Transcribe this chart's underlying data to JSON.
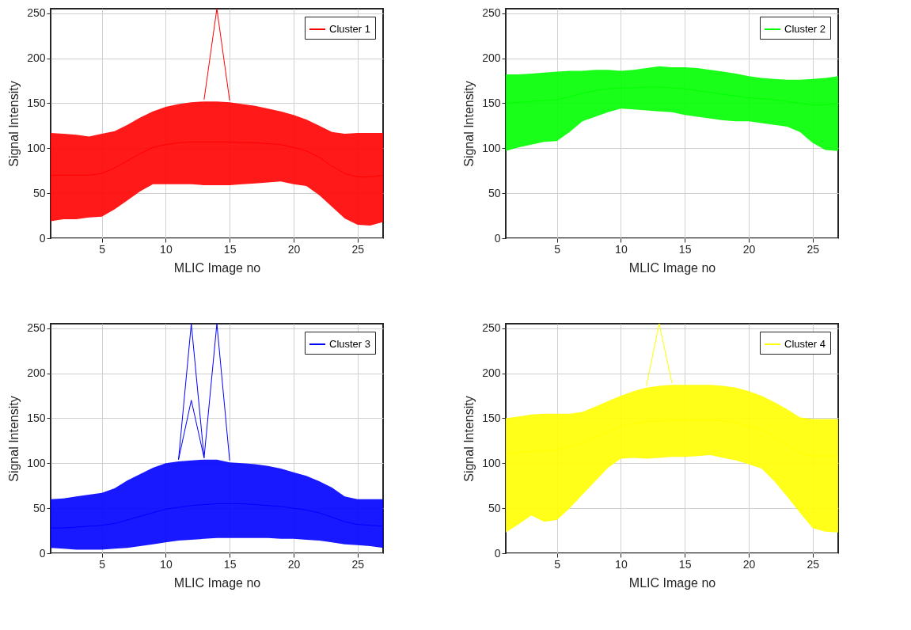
{
  "chart_data": [
    {
      "type": "line",
      "xlabel": "MLIC Image no",
      "ylabel": "Signal Intensity",
      "x": [
        1,
        2,
        3,
        4,
        5,
        6,
        7,
        8,
        9,
        10,
        11,
        12,
        13,
        14,
        15,
        16,
        17,
        18,
        19,
        20,
        21,
        22,
        23,
        24,
        25,
        26,
        27
      ],
      "xlim": [
        1,
        27
      ],
      "xticks": [
        5,
        10,
        15,
        20,
        25
      ],
      "ylim": [
        0,
        255
      ],
      "yticks": [
        0,
        50,
        100,
        150,
        200,
        250
      ],
      "grid": true,
      "legend": "top right",
      "marker": "none",
      "line_style": "solid",
      "series": [
        {
          "name": "Cluster 1",
          "color": "#ff0000",
          "values": [
            70,
            70,
            70,
            70,
            72,
            78,
            86,
            94,
            101,
            104,
            106,
            107,
            107,
            107,
            107,
            106,
            106,
            105,
            104,
            101,
            97,
            90,
            80,
            72,
            68,
            68,
            70
          ],
          "lower": [
            19,
            21,
            21,
            23,
            24,
            32,
            42,
            52,
            60,
            60,
            60,
            60,
            59,
            59,
            59,
            60,
            61,
            62,
            63,
            60,
            58,
            48,
            35,
            22,
            15,
            14,
            18
          ],
          "upper": [
            117,
            116,
            115,
            113,
            116,
            119,
            126,
            134,
            141,
            146,
            149,
            151,
            152,
            152,
            151,
            149,
            147,
            144,
            141,
            137,
            132,
            125,
            118,
            116,
            117,
            117,
            117
          ]
        },
        {
          "color": "#ff0000",
          "x": [
            13,
            14,
            15
          ],
          "values": [
            154,
            255,
            153
          ]
        }
      ]
    },
    {
      "type": "line",
      "xlabel": "MLIC Image no",
      "ylabel": "Signal Intensity",
      "x": [
        1,
        2,
        3,
        4,
        5,
        6,
        7,
        8,
        9,
        10,
        11,
        12,
        13,
        14,
        15,
        16,
        17,
        18,
        19,
        20,
        21,
        22,
        23,
        24,
        25,
        26,
        27
      ],
      "xlim": [
        1,
        27
      ],
      "xticks": [
        5,
        10,
        15,
        20,
        25
      ],
      "ylim": [
        0,
        255
      ],
      "yticks": [
        0,
        50,
        100,
        150,
        200,
        250
      ],
      "grid": true,
      "legend": "top right",
      "marker": "none",
      "line_style": "solid",
      "series": [
        {
          "name": "Cluster 2",
          "color": "#00ff00",
          "values": [
            150,
            151,
            152,
            153,
            154,
            157,
            161,
            164,
            166,
            167,
            167,
            168,
            168,
            167,
            166,
            164,
            162,
            160,
            158,
            156,
            155,
            154,
            152,
            150,
            148,
            148,
            150
          ],
          "lower": [
            97,
            101,
            104,
            107,
            108,
            118,
            130,
            135,
            140,
            144,
            143,
            142,
            141,
            140,
            137,
            135,
            133,
            131,
            130,
            130,
            128,
            126,
            124,
            118,
            106,
            98,
            97
          ],
          "upper": [
            182,
            182,
            183,
            184,
            185,
            186,
            186,
            187,
            187,
            186,
            187,
            189,
            191,
            190,
            190,
            189,
            187,
            185,
            183,
            180,
            178,
            177,
            176,
            176,
            177,
            178,
            180
          ]
        }
      ]
    },
    {
      "type": "line",
      "xlabel": "MLIC Image no",
      "ylabel": "Signal Intensity",
      "x": [
        1,
        2,
        3,
        4,
        5,
        6,
        7,
        8,
        9,
        10,
        11,
        12,
        13,
        14,
        15,
        16,
        17,
        18,
        19,
        20,
        21,
        22,
        23,
        24,
        25,
        26,
        27
      ],
      "xlim": [
        1,
        27
      ],
      "xticks": [
        5,
        10,
        15,
        20,
        25
      ],
      "ylim": [
        0,
        255
      ],
      "yticks": [
        0,
        50,
        100,
        150,
        200,
        250
      ],
      "grid": true,
      "legend": "top right",
      "marker": "none",
      "line_style": "solid",
      "series": [
        {
          "name": "Cluster 3",
          "color": "#0000ff",
          "values": [
            28,
            28,
            29,
            30,
            31,
            33,
            37,
            41,
            45,
            49,
            51,
            53,
            54,
            55,
            55,
            55,
            54,
            53,
            52,
            50,
            48,
            45,
            40,
            35,
            32,
            31,
            30
          ],
          "lower": [
            6,
            5,
            4,
            4,
            4,
            5,
            6,
            8,
            10,
            12,
            14,
            15,
            16,
            17,
            17,
            17,
            17,
            17,
            16,
            16,
            15,
            14,
            12,
            10,
            9,
            8,
            6
          ],
          "upper": [
            60,
            61,
            63,
            65,
            67,
            72,
            81,
            88,
            95,
            100,
            102,
            103,
            104,
            104,
            101,
            100,
            99,
            97,
            94,
            90,
            86,
            80,
            73,
            63,
            60,
            60,
            60
          ]
        },
        {
          "color": "#0000ff",
          "x": [
            11,
            12,
            13
          ],
          "values": [
            104,
            255,
            106
          ]
        },
        {
          "color": "#0000ff",
          "x": [
            13,
            14,
            15
          ],
          "values": [
            106,
            255,
            103
          ]
        },
        {
          "color": "#0000ff",
          "x": [
            11,
            12,
            13
          ],
          "values": [
            104,
            170,
            106
          ]
        }
      ]
    },
    {
      "type": "line",
      "xlabel": "MLIC Image no",
      "ylabel": "Signal Intensity",
      "x": [
        1,
        2,
        3,
        4,
        5,
        6,
        7,
        8,
        9,
        10,
        11,
        12,
        13,
        14,
        15,
        16,
        17,
        18,
        19,
        20,
        21,
        22,
        23,
        24,
        25,
        26,
        27
      ],
      "xlim": [
        1,
        27
      ],
      "xticks": [
        5,
        10,
        15,
        20,
        25
      ],
      "ylim": [
        0,
        255
      ],
      "yticks": [
        0,
        50,
        100,
        150,
        200,
        250
      ],
      "grid": true,
      "legend": "top right",
      "marker": "none",
      "line_style": "solid",
      "series": [
        {
          "name": "Cluster 4",
          "color": "#ffff00",
          "values": [
            110,
            112,
            113,
            114,
            115,
            118,
            123,
            129,
            135,
            141,
            144,
            146,
            147,
            148,
            148,
            148,
            148,
            147,
            145,
            141,
            137,
            130,
            120,
            112,
            108,
            108,
            108
          ],
          "lower": [
            23,
            32,
            42,
            35,
            37,
            50,
            65,
            80,
            95,
            105,
            106,
            105,
            106,
            107,
            107,
            108,
            109,
            106,
            103,
            99,
            94,
            80,
            63,
            45,
            28,
            24,
            23
          ],
          "upper": [
            150,
            152,
            154,
            155,
            155,
            155,
            157,
            163,
            169,
            175,
            180,
            184,
            186,
            187,
            187,
            187,
            187,
            186,
            184,
            180,
            175,
            168,
            160,
            151,
            149,
            149,
            149
          ]
        },
        {
          "color": "#ffff00",
          "x": [
            12,
            13,
            14
          ],
          "values": [
            186,
            255,
            189
          ]
        }
      ]
    }
  ]
}
